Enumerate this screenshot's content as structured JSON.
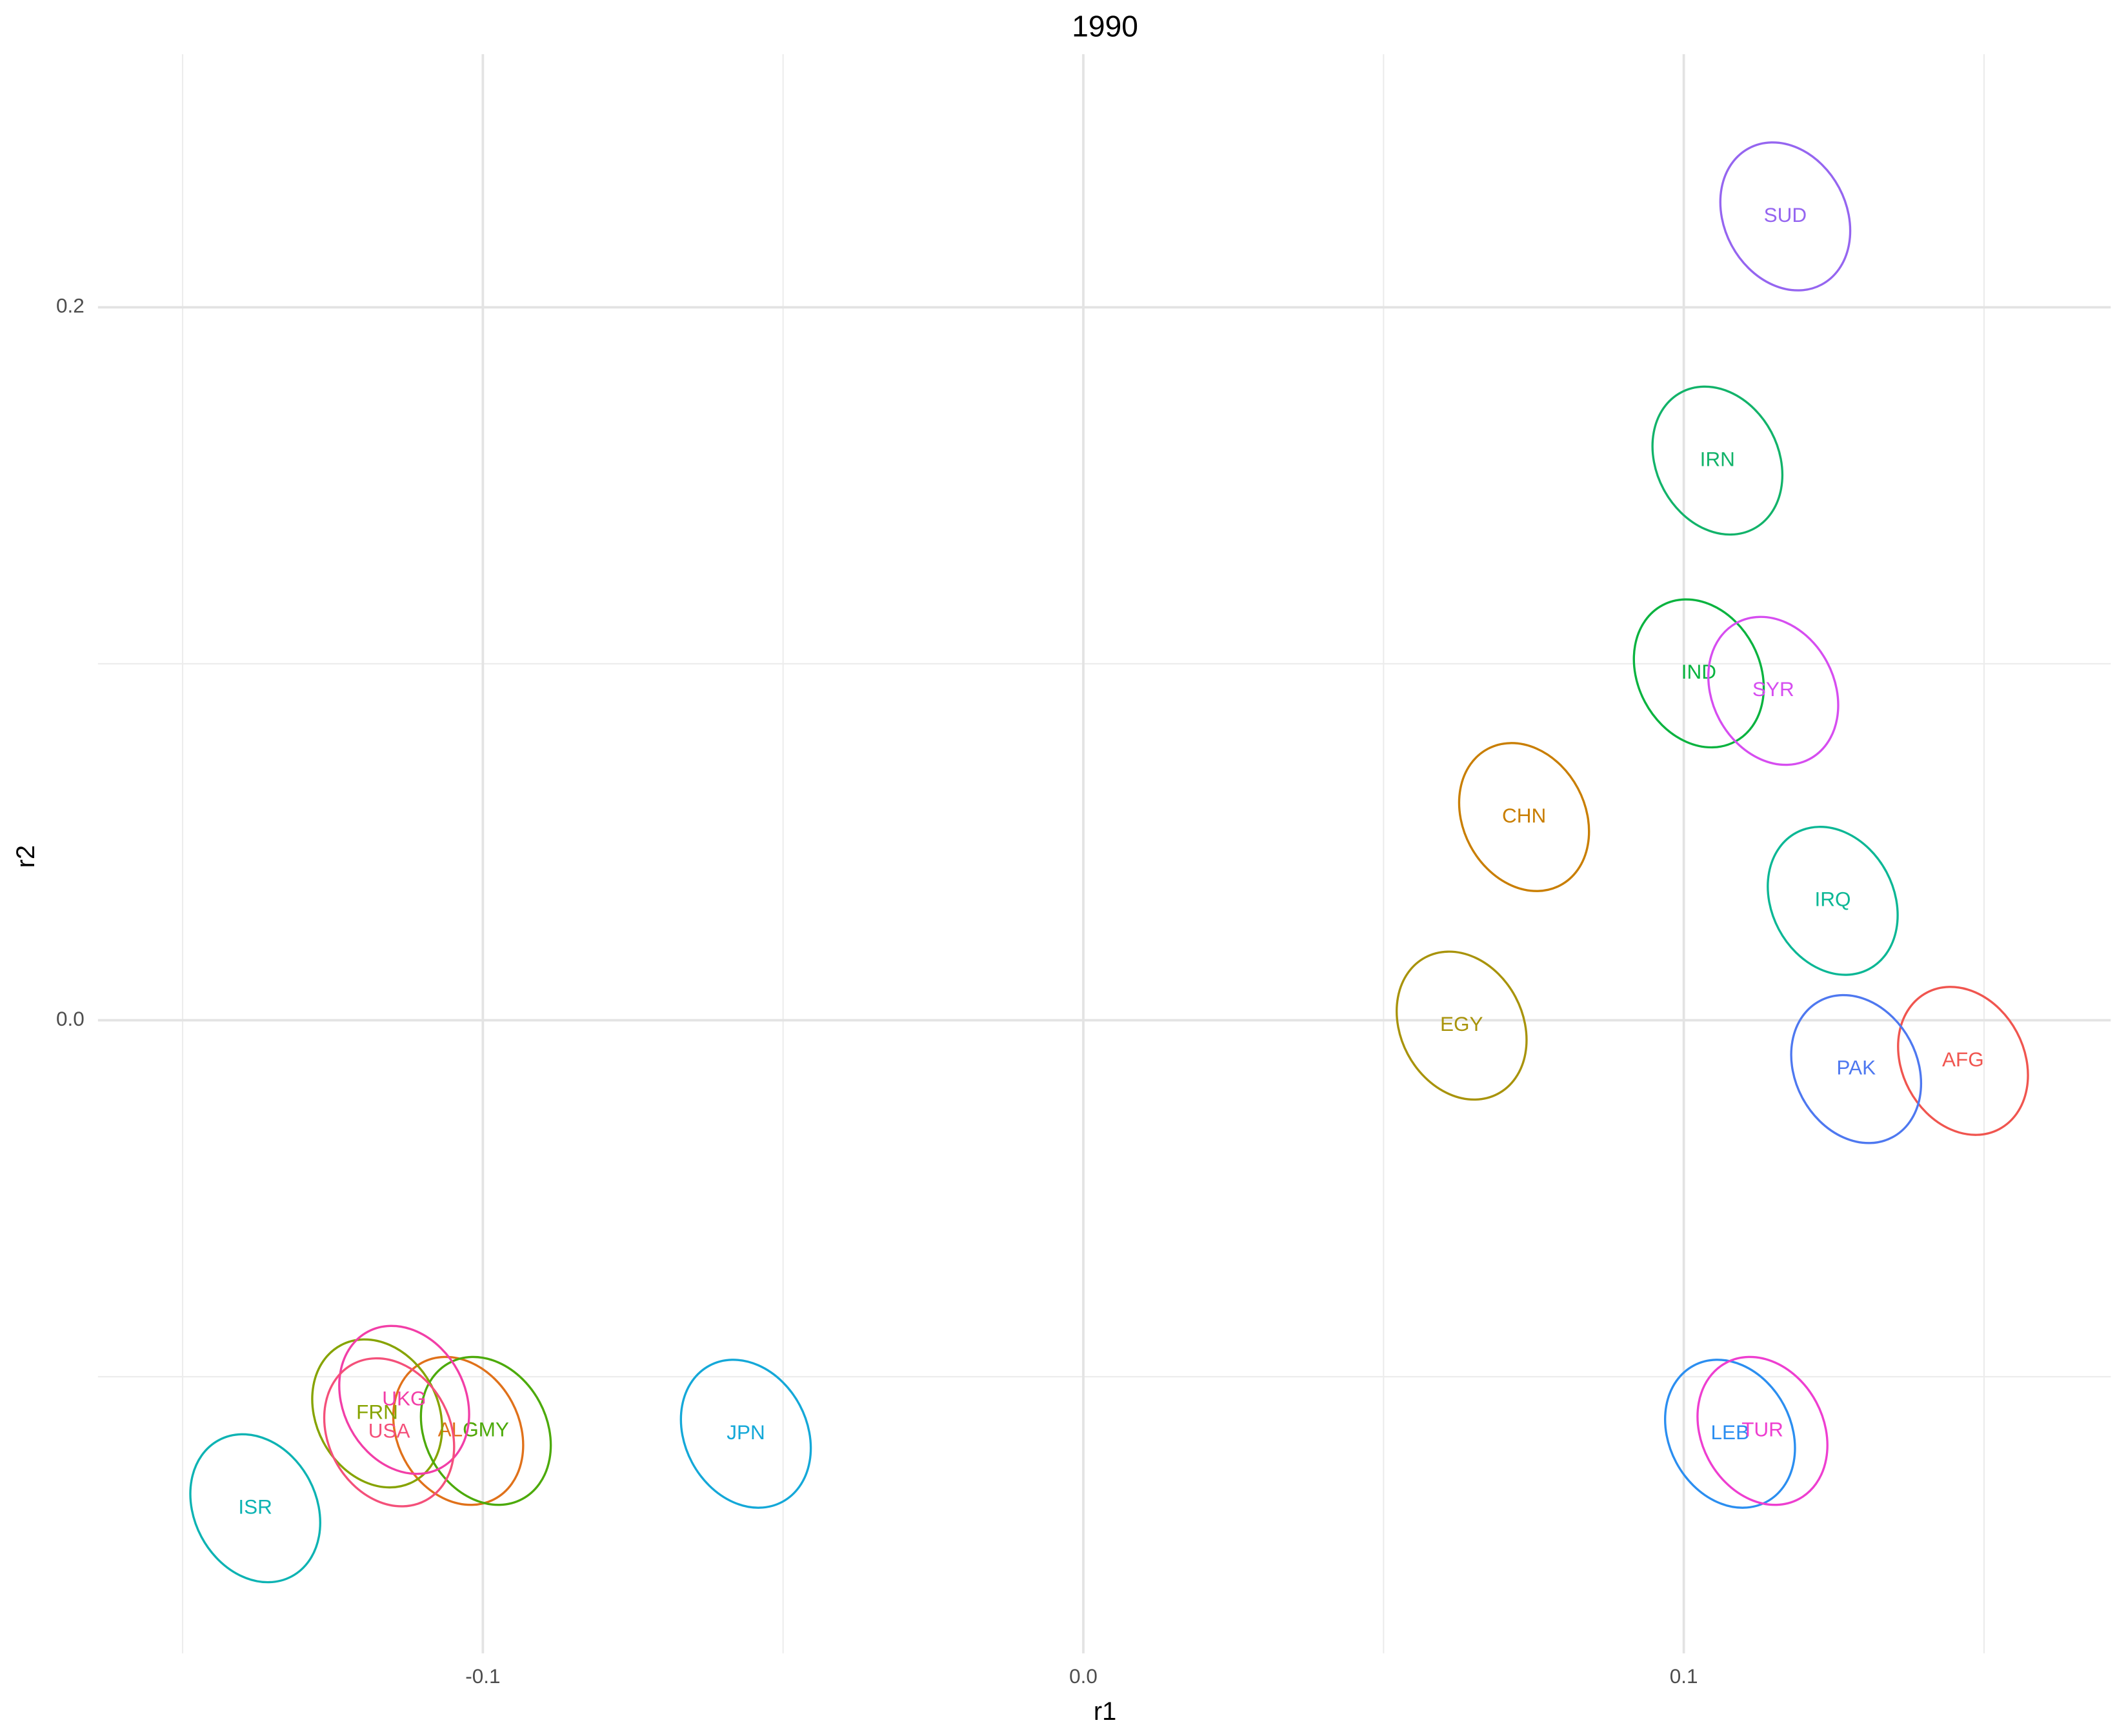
{
  "chart_data": {
    "type": "ellipse-scatter",
    "title": "1990",
    "x_label": "r1",
    "y_label": "r2",
    "xlim": [
      -0.1641,
      0.1711
    ],
    "ylim": [
      -0.1776,
      0.271
    ],
    "xticks": [
      -0.1,
      {
        "value": 0,
        "label": "0.0"
      },
      0.1
    ],
    "yticks": [
      {
        "value": 0,
        "label": "0.0"
      },
      0.2
    ],
    "xminor": [
      -0.15,
      -0.05,
      0.05,
      0.15
    ],
    "yminor": [
      -0.1,
      0.1
    ],
    "grid": true,
    "points": [
      {
        "label": "AFG",
        "color": "#f0554f",
        "x": 0.1465,
        "y": -0.0114
      },
      {
        "label": "ALG",
        "color": "#e0711a",
        "x": -0.1041,
        "y": -0.1152
      },
      {
        "label": "CHN",
        "color": "#c97e00",
        "x": 0.0734,
        "y": 0.057
      },
      {
        "label": "EGY",
        "color": "#a8930a",
        "x": 0.063,
        "y": -0.0015
      },
      {
        "label": "FRN",
        "color": "#86a300",
        "x": -0.1176,
        "y": -0.1103
      },
      {
        "label": "GMY",
        "color": "#4caa0a",
        "x": -0.0995,
        "y": -0.1152
      },
      {
        "label": "IND",
        "color": "#09b33f",
        "x": 0.1025,
        "y": 0.0973
      },
      {
        "label": "IRN",
        "color": "#12b36a",
        "x": 0.1056,
        "y": 0.157
      },
      {
        "label": "IRQ",
        "color": "#0bb795",
        "x": 0.1248,
        "y": 0.0335
      },
      {
        "label": "ISR",
        "color": "#0db3b3",
        "x": -0.1379,
        "y": -0.1369
      },
      {
        "label": "JPN",
        "color": "#14a8d8",
        "x": -0.0562,
        "y": -0.116
      },
      {
        "label": "LEB",
        "color": "#2b8ef0",
        "x": 0.1077,
        "y": -0.116
      },
      {
        "label": "PAK",
        "color": "#4e78f0",
        "x": 0.1287,
        "y": -0.0137
      },
      {
        "label": "SUD",
        "color": "#9565f0",
        "x": 0.1169,
        "y": 0.2255
      },
      {
        "label": "SYR",
        "color": "#d64df0",
        "x": 0.1149,
        "y": 0.0924
      },
      {
        "label": "TUR",
        "color": "#ee3ed0",
        "x": 0.1131,
        "y": -0.1152
      },
      {
        "label": "UKG",
        "color": "#f23ea7",
        "x": -0.1131,
        "y": -0.1065
      },
      {
        "label": "USA",
        "color": "#f4507a",
        "x": -0.1156,
        "y": -0.1156
      }
    ]
  }
}
